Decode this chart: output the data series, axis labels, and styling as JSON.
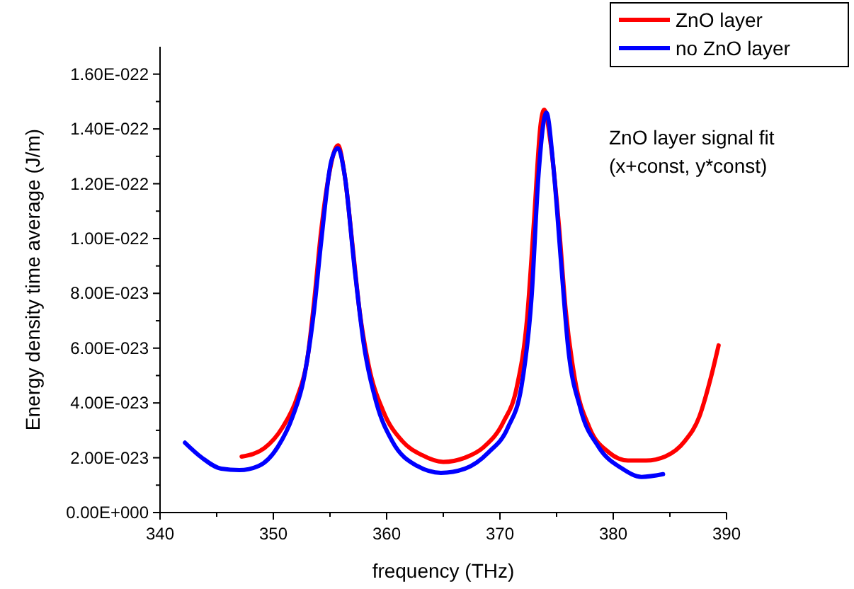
{
  "chart_data": {
    "type": "line",
    "xlabel": "frequency (THz)",
    "ylabel": "Energy density time average (J/m)",
    "annotations": [
      "ZnO layer signal fit\n(x+const, y*const)"
    ],
    "xlim": [
      340,
      390
    ],
    "ylim": [
      0,
      1.7e-22
    ],
    "xticks": [
      340,
      {
        "value": 345,
        "label": null
      },
      350,
      {
        "value": 355,
        "label": null
      },
      360,
      {
        "value": 365,
        "label": null
      },
      370,
      {
        "value": 375,
        "label": null
      },
      380,
      {
        "value": 385,
        "label": null
      },
      390
    ],
    "yticks": [
      {
        "value": 0,
        "label": "0.00E+000"
      },
      {
        "value": 1e-23,
        "label": null
      },
      {
        "value": 2e-23,
        "label": "2.00E-023"
      },
      {
        "value": 3e-23,
        "label": null
      },
      {
        "value": 4e-23,
        "label": "4.00E-023"
      },
      {
        "value": 5e-23,
        "label": null
      },
      {
        "value": 6e-23,
        "label": "6.00E-023"
      },
      {
        "value": 7e-23,
        "label": null
      },
      {
        "value": 8e-23,
        "label": "8.00E-023"
      },
      {
        "value": 9e-23,
        "label": null
      },
      {
        "value": 1e-22,
        "label": "1.00E-022"
      },
      {
        "value": 1.1e-22,
        "label": null
      },
      {
        "value": 1.2e-22,
        "label": "1.20E-022"
      },
      {
        "value": 1.3e-22,
        "label": null
      },
      {
        "value": 1.4e-22,
        "label": "1.40E-022"
      },
      {
        "value": 1.5e-22,
        "label": null
      },
      {
        "value": 1.6e-22,
        "label": "1.60E-022"
      }
    ],
    "legend": "top right",
    "grid": false,
    "line_style": "solid",
    "series": [
      {
        "name": "ZnO layer",
        "color": "#ff0000",
        "x": [
          347.2,
          349.2,
          350.8,
          352.1,
          353.0,
          353.6,
          354.2,
          354.9,
          355.7,
          356.3,
          357.0,
          357.6,
          358.4,
          359.7,
          361.4,
          363.1,
          365.0,
          366.9,
          368.6,
          370.3,
          371.5,
          372.4,
          373.0,
          373.6,
          373.9,
          374.5,
          375.2,
          375.8,
          376.6,
          377.9,
          379.6,
          381.3,
          382.9,
          384.6,
          386.3,
          387.6,
          388.6,
          389.3
        ],
        "values": [
          2.04e-23,
          2.35e-23,
          3.1e-23,
          4.2e-23,
          5.6e-23,
          7.7e-23,
          1.02e-22,
          1.23e-22,
          1.34e-22,
          1.23e-22,
          9.7e-23,
          7.4e-23,
          5.4e-23,
          3.7e-23,
          2.6e-23,
          2.1e-23,
          1.85e-23,
          2e-23,
          2.4e-23,
          3.3e-23,
          4.6e-23,
          7.1e-23,
          1.06e-22,
          1.42e-22,
          1.47e-22,
          1.34e-22,
          1.05e-22,
          7.4e-23,
          4.9e-23,
          3.1e-23,
          2.2e-23,
          1.9e-23,
          1.9e-23,
          2.05e-23,
          2.6e-23,
          3.5e-23,
          4.9e-23,
          6.1e-23
        ]
      },
      {
        "name": "no ZnO layer",
        "color": "#0000ff",
        "x": [
          342.2,
          343.7,
          345.4,
          347.0,
          348.7,
          350.4,
          351.7,
          352.7,
          353.6,
          354.2,
          355.1,
          355.7,
          356.3,
          357.2,
          358.0,
          359.1,
          360.5,
          362.7,
          364.8,
          366.9,
          369.0,
          370.7,
          371.9,
          372.8,
          373.4,
          374.1,
          374.7,
          375.4,
          376.0,
          377.1,
          378.7,
          380.8,
          382.5,
          384.4
        ],
        "values": [
          2.55e-23,
          2e-23,
          1.6e-23,
          1.55e-23,
          1.7e-23,
          2.4e-23,
          3.5e-23,
          4.9e-23,
          7.4e-23,
          9.8e-23,
          1.28e-22,
          1.33e-22,
          1.23e-22,
          8.8e-23,
          6.1e-23,
          4e-23,
          2.6e-23,
          1.7e-23,
          1.45e-23,
          1.6e-23,
          2.2e-23,
          3.1e-23,
          4.6e-23,
          7.9e-23,
          1.23e-22,
          1.46e-22,
          1.27e-22,
          9.1e-23,
          6.1e-23,
          3.8e-23,
          2.4e-23,
          1.6e-23,
          1.3e-23,
          1.4e-23
        ]
      }
    ]
  }
}
